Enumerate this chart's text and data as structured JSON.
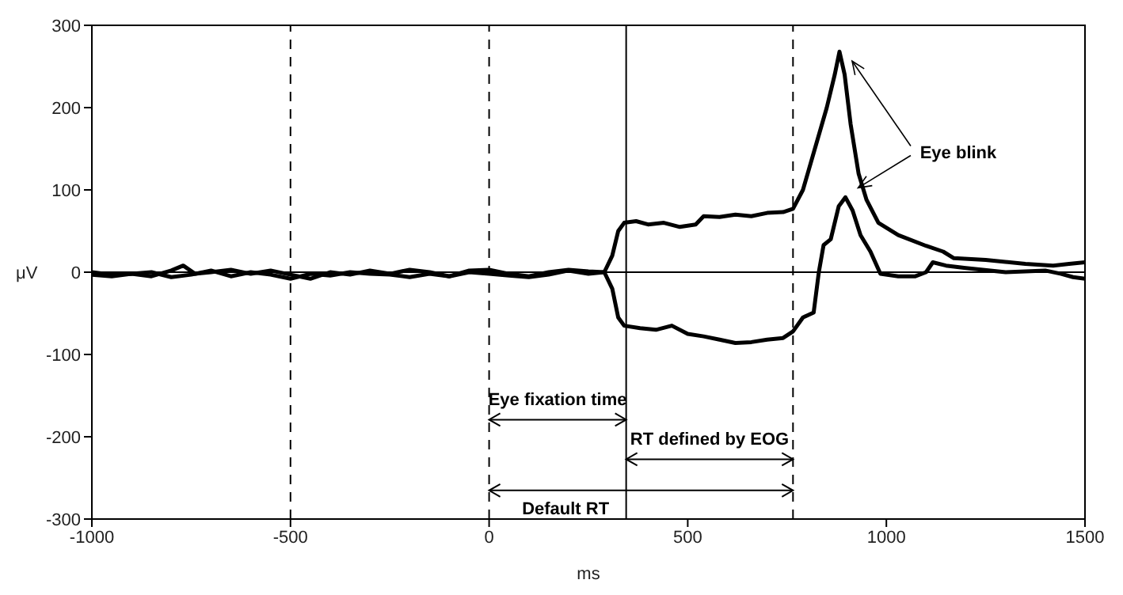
{
  "chart_data": {
    "type": "line",
    "xlabel": "ms",
    "ylabel": "μV",
    "xlim": [
      -1000,
      1500
    ],
    "ylim": [
      -300,
      300
    ],
    "xticks": [
      -1000,
      -500,
      0,
      500,
      1000,
      1500
    ],
    "yticks": [
      -300,
      -200,
      -100,
      0,
      100,
      200,
      300
    ],
    "grid": false,
    "legend": false,
    "marker": "none",
    "line_style": "solid",
    "series": [
      {
        "color": "#000000",
        "x": [
          -1000,
          -950,
          -900,
          -850,
          -800,
          -770,
          -740,
          -700,
          -650,
          -600,
          -550,
          -500,
          -450,
          -400,
          -350,
          -300,
          -250,
          -200,
          -150,
          -100,
          -50,
          0,
          50,
          100,
          150,
          200,
          250,
          290,
          310,
          325,
          340,
          370,
          400,
          440,
          480,
          520,
          540,
          580,
          620,
          660,
          700,
          740,
          765,
          790,
          820,
          850,
          870,
          882,
          895,
          910,
          930,
          950,
          980,
          1030,
          1100,
          1143,
          1170,
          1250,
          1350,
          1420,
          1460,
          1500
        ],
        "values": [
          0,
          -3,
          -2,
          -5,
          2,
          8,
          -2,
          0,
          3,
          -2,
          2,
          -3,
          -8,
          0,
          -3,
          2,
          -2,
          3,
          0,
          -5,
          2,
          3,
          -2,
          -5,
          0,
          3,
          1,
          0,
          20,
          50,
          60,
          62,
          58,
          60,
          55,
          58,
          68,
          67,
          70,
          68,
          72,
          73,
          77,
          100,
          150,
          200,
          240,
          268,
          240,
          180,
          120,
          88,
          60,
          45,
          32,
          25,
          17,
          15,
          10,
          8,
          10,
          12
        ]
      },
      {
        "color": "#000000",
        "x": [
          -1000,
          -950,
          -900,
          -850,
          -800,
          -750,
          -700,
          -650,
          -600,
          -550,
          -500,
          -450,
          -400,
          -350,
          -300,
          -250,
          -200,
          -150,
          -100,
          -50,
          0,
          50,
          100,
          150,
          200,
          250,
          290,
          310,
          325,
          340,
          380,
          420,
          460,
          500,
          540,
          580,
          620,
          660,
          700,
          740,
          765,
          790,
          817,
          830,
          842,
          860,
          880,
          897,
          915,
          935,
          960,
          985,
          1030,
          1073,
          1100,
          1117,
          1150,
          1200,
          1300,
          1400,
          1440,
          1470,
          1500
        ],
        "values": [
          -3,
          -5,
          -2,
          0,
          -6,
          -3,
          2,
          -5,
          0,
          -3,
          -8,
          -2,
          -4,
          0,
          -2,
          -3,
          -6,
          -2,
          -5,
          0,
          -2,
          -4,
          -6,
          -3,
          2,
          -2,
          0,
          -20,
          -55,
          -65,
          -68,
          -70,
          -65,
          -75,
          -78,
          -82,
          -86,
          -85,
          -82,
          -80,
          -72,
          -55,
          -49,
          0,
          33,
          40,
          80,
          91,
          75,
          45,
          25,
          -2,
          -5,
          -5,
          0,
          12,
          8,
          5,
          0,
          2,
          -2,
          -6,
          -8
        ]
      }
    ],
    "ref_lines": [
      {
        "axis": "x",
        "value": -500,
        "line_style": "dashed",
        "color": "#000000"
      },
      {
        "axis": "x",
        "value": 0,
        "line_style": "dashed",
        "color": "#000000"
      },
      {
        "axis": "x",
        "value": 345,
        "line_style": "solid",
        "color": "#000000"
      },
      {
        "axis": "x",
        "value": 765,
        "line_style": "dashed",
        "color": "#000000"
      },
      {
        "axis": "y",
        "value": 0,
        "line_style": "solid",
        "color": "#000000"
      }
    ],
    "annotations": [
      "Eye blink",
      "Eye fixation time",
      "RT defined by EOG",
      "Default RT"
    ]
  }
}
